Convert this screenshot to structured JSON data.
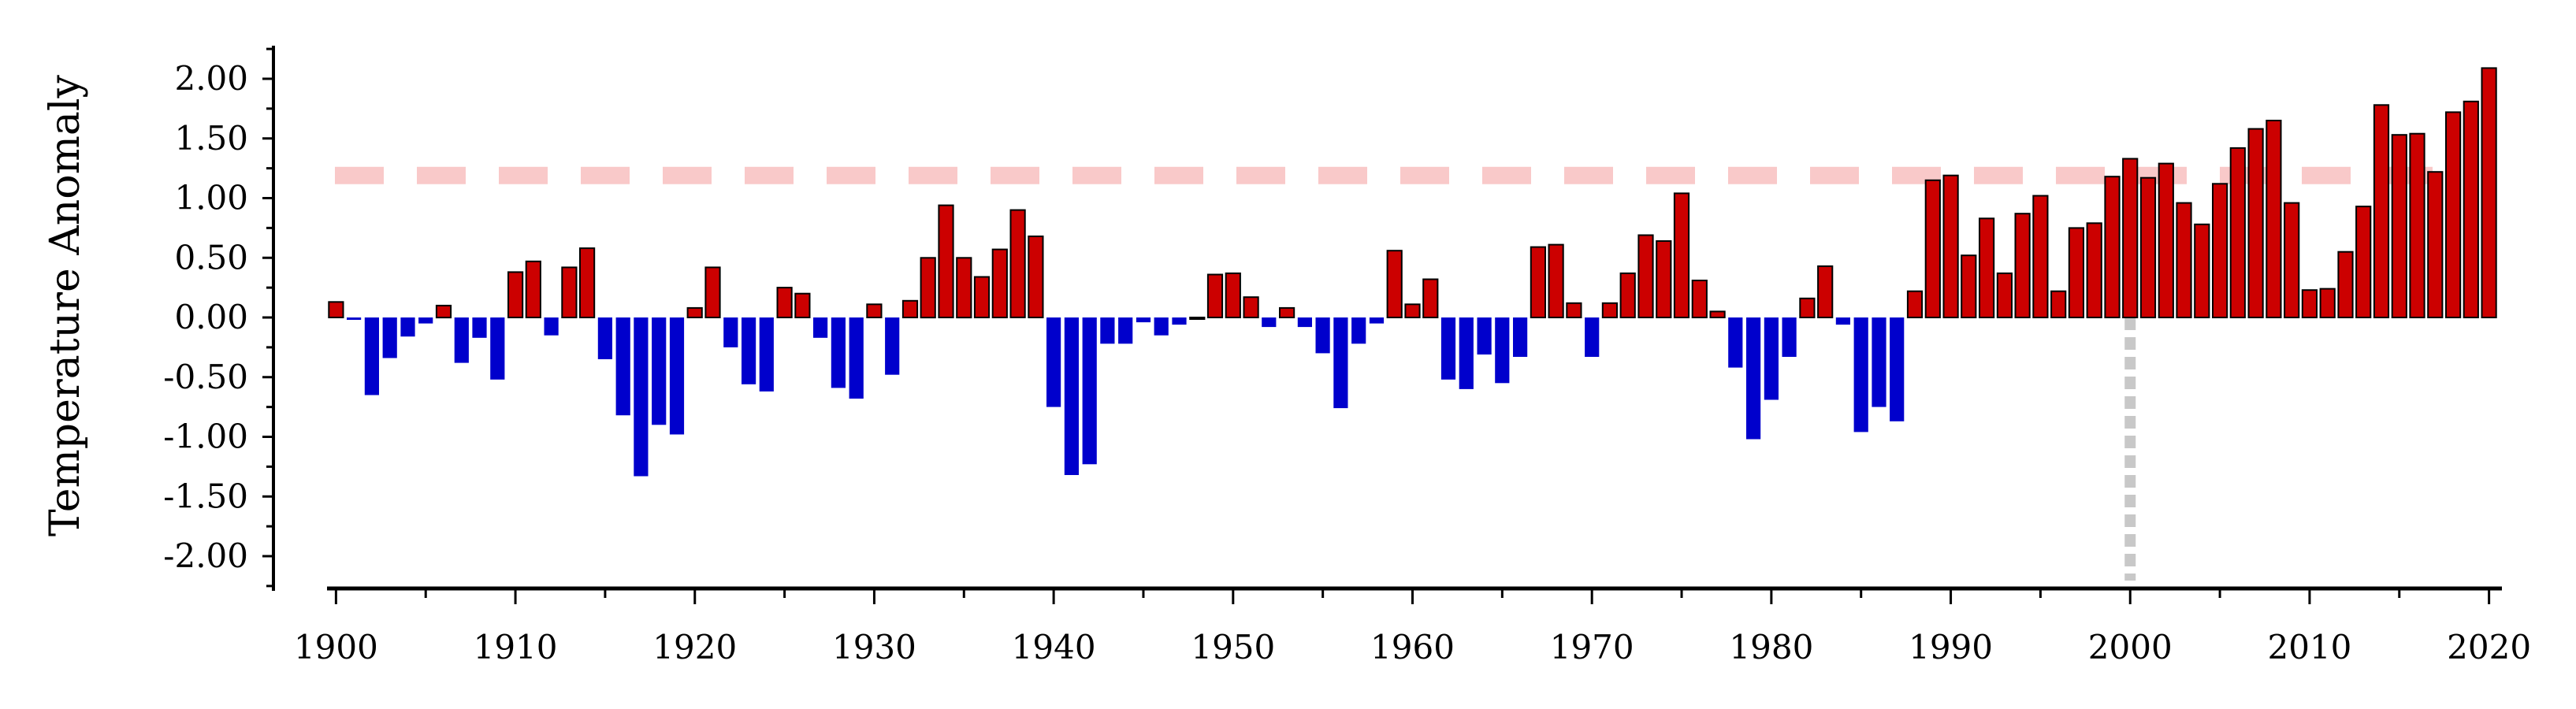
{
  "chart_data": {
    "type": "bar",
    "ylabel": "Temperature Anomaly",
    "xlabel": "",
    "title": "",
    "ylim": [
      -2.25,
      2.25
    ],
    "xlim": [
      1899.5,
      2020.5
    ],
    "yticks": [
      2.0,
      1.5,
      1.0,
      0.5,
      0.0,
      -0.5,
      -1.0,
      -1.5,
      -2.0
    ],
    "ytick_labels": [
      "2.00",
      "1.50",
      "1.00",
      "0.50",
      "0.00",
      "-0.50",
      "-1.00",
      "-1.50",
      "-2.00"
    ],
    "xticks": [
      1900,
      1910,
      1920,
      1930,
      1940,
      1950,
      1960,
      1970,
      1980,
      1990,
      2000,
      2010,
      2020
    ],
    "xtick_labels": [
      "1900",
      "1910",
      "1920",
      "1930",
      "1940",
      "1950",
      "1960",
      "1970",
      "1980",
      "1990",
      "2000",
      "2010",
      "2020"
    ],
    "grid": false,
    "colors": {
      "positive": "#cc0000",
      "negative": "#0000cc",
      "bar_edge": "#000000",
      "threshold_line": "#f9c9c9",
      "reference_line": "#c8c8c8"
    },
    "threshold_line": {
      "y": 1.19,
      "style": "dashed"
    },
    "reference_line": {
      "x": 2000,
      "style": "dotted",
      "from_y": 0.0,
      "to_y": -2.2
    },
    "x": [
      1900,
      1901,
      1902,
      1903,
      1904,
      1905,
      1906,
      1907,
      1908,
      1909,
      1910,
      1911,
      1912,
      1913,
      1914,
      1915,
      1916,
      1917,
      1918,
      1919,
      1920,
      1921,
      1922,
      1923,
      1924,
      1925,
      1926,
      1927,
      1928,
      1929,
      1930,
      1931,
      1932,
      1933,
      1934,
      1935,
      1936,
      1937,
      1938,
      1939,
      1940,
      1941,
      1942,
      1943,
      1944,
      1945,
      1946,
      1947,
      1948,
      1949,
      1950,
      1951,
      1952,
      1953,
      1954,
      1955,
      1956,
      1957,
      1958,
      1959,
      1960,
      1961,
      1962,
      1963,
      1964,
      1965,
      1966,
      1967,
      1968,
      1969,
      1970,
      1971,
      1972,
      1973,
      1974,
      1975,
      1976,
      1977,
      1978,
      1979,
      1980,
      1981,
      1982,
      1983,
      1984,
      1985,
      1986,
      1987,
      1988,
      1989,
      1990,
      1991,
      1992,
      1993,
      1994,
      1995,
      1996,
      1997,
      1998,
      1999,
      2000,
      2001,
      2002,
      2003,
      2004,
      2005,
      2006,
      2007,
      2008,
      2009,
      2010,
      2011,
      2012,
      2013,
      2014,
      2015,
      2016,
      2017,
      2018,
      2019,
      2020
    ],
    "values": [
      0.13,
      -0.02,
      -0.65,
      -0.34,
      -0.16,
      -0.05,
      0.1,
      -0.38,
      -0.17,
      -0.52,
      0.38,
      0.47,
      -0.15,
      0.42,
      0.58,
      -0.35,
      -0.82,
      -1.33,
      -0.9,
      -0.98,
      0.08,
      0.42,
      -0.25,
      -0.56,
      -0.62,
      0.25,
      0.2,
      -0.17,
      -0.59,
      -0.68,
      0.11,
      -0.48,
      0.14,
      0.5,
      0.94,
      0.5,
      0.34,
      0.57,
      0.9,
      0.68,
      -0.75,
      -1.32,
      -1.23,
      -0.22,
      -0.22,
      -0.04,
      -0.15,
      -0.06,
      0.0,
      0.36,
      0.37,
      0.17,
      -0.08,
      0.08,
      -0.08,
      -0.3,
      -0.76,
      -0.22,
      -0.05,
      0.56,
      0.11,
      0.32,
      -0.52,
      -0.6,
      -0.31,
      -0.55,
      -0.33,
      0.59,
      0.61,
      0.12,
      -0.33,
      0.12,
      0.37,
      0.69,
      0.64,
      1.04,
      0.31,
      0.05,
      -0.42,
      -1.02,
      -0.69,
      -0.33,
      0.16,
      0.43,
      -0.06,
      -0.96,
      -0.75,
      -0.87,
      0.22,
      1.15,
      1.19,
      0.52,
      0.83,
      0.37,
      0.87,
      1.02,
      0.22,
      0.75,
      0.79,
      1.18,
      1.33,
      1.17,
      1.29,
      0.96,
      0.78,
      1.12,
      1.42,
      1.58,
      1.65,
      0.96,
      0.23,
      0.24,
      0.55,
      0.93,
      1.78,
      1.53,
      1.54,
      1.22,
      1.72,
      1.81,
      2.09
    ]
  }
}
